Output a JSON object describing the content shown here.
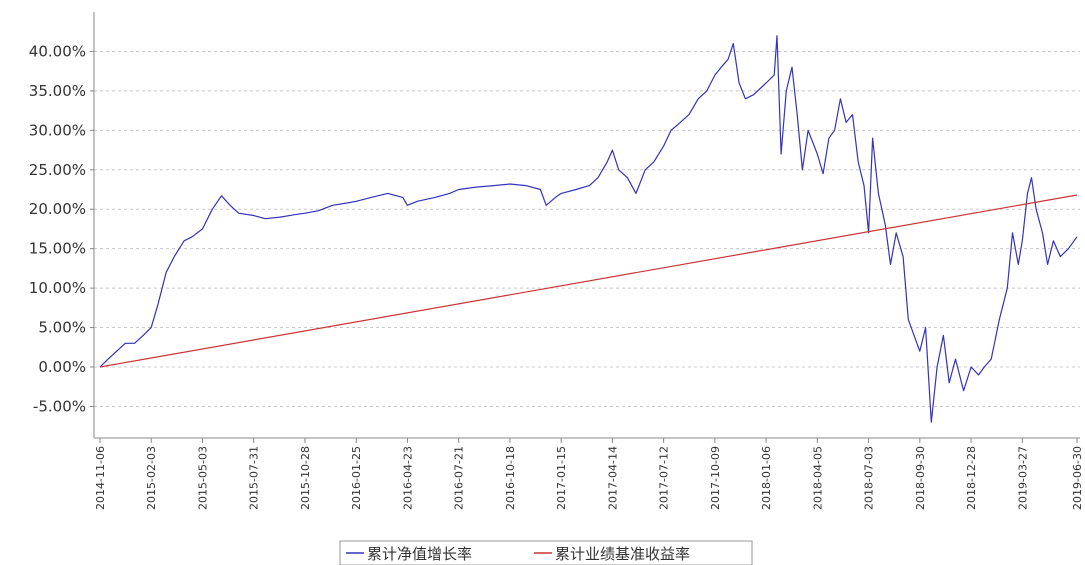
{
  "chart_data": {
    "type": "line",
    "title": "",
    "xlabel": "",
    "ylabel": "",
    "ylim": [
      -0.09,
      0.45
    ],
    "grid": true,
    "legend_position": "bottom-center",
    "x_ticks": [
      "2014-11-06",
      "2015-02-03",
      "2015-05-03",
      "2015-07-31",
      "2015-10-28",
      "2016-01-25",
      "2016-04-23",
      "2016-07-21",
      "2016-10-18",
      "2017-01-15",
      "2017-04-14",
      "2017-07-12",
      "2017-10-09",
      "2018-01-06",
      "2018-04-05",
      "2018-07-03",
      "2018-09-30",
      "2018-12-28",
      "2019-03-27",
      "2019-06-30"
    ],
    "y_ticks": [
      "-5.00%",
      "0.00%",
      "5.00%",
      "10.00%",
      "15.00%",
      "20.00%",
      "25.00%",
      "30.00%",
      "35.00%",
      "40.00%"
    ],
    "y_tick_values": [
      -0.05,
      0,
      0.05,
      0.1,
      0.15,
      0.2,
      0.25,
      0.3,
      0.35,
      0.4
    ],
    "series": [
      {
        "name": "累计净值增长率",
        "color": "#3333bb",
        "points": [
          [
            "2014-11-06",
            0.0
          ],
          [
            "2014-11-20",
            0.01
          ],
          [
            "2014-12-05",
            0.02
          ],
          [
            "2014-12-20",
            0.03
          ],
          [
            "2015-01-05",
            0.03
          ],
          [
            "2015-01-20",
            0.04
          ],
          [
            "2015-02-03",
            0.05
          ],
          [
            "2015-02-15",
            0.08
          ],
          [
            "2015-03-01",
            0.12
          ],
          [
            "2015-03-15",
            0.14
          ],
          [
            "2015-04-01",
            0.16
          ],
          [
            "2015-04-15",
            0.165
          ],
          [
            "2015-05-03",
            0.175
          ],
          [
            "2015-05-20",
            0.2
          ],
          [
            "2015-06-05",
            0.217
          ],
          [
            "2015-06-20",
            0.205
          ],
          [
            "2015-07-05",
            0.195
          ],
          [
            "2015-07-31",
            0.192
          ],
          [
            "2015-08-20",
            0.188
          ],
          [
            "2015-09-15",
            0.19
          ],
          [
            "2015-10-10",
            0.193
          ],
          [
            "2015-10-28",
            0.195
          ],
          [
            "2015-11-20",
            0.198
          ],
          [
            "2015-12-15",
            0.205
          ],
          [
            "2016-01-10",
            0.208
          ],
          [
            "2016-01-25",
            0.21
          ],
          [
            "2016-02-20",
            0.215
          ],
          [
            "2016-03-20",
            0.22
          ],
          [
            "2016-04-15",
            0.215
          ],
          [
            "2016-04-23",
            0.205
          ],
          [
            "2016-05-10",
            0.21
          ],
          [
            "2016-06-10",
            0.215
          ],
          [
            "2016-07-05",
            0.22
          ],
          [
            "2016-07-21",
            0.225
          ],
          [
            "2016-08-20",
            0.228
          ],
          [
            "2016-09-20",
            0.23
          ],
          [
            "2016-10-18",
            0.232
          ],
          [
            "2016-11-15",
            0.23
          ],
          [
            "2016-12-10",
            0.225
          ],
          [
            "2016-12-20",
            0.205
          ],
          [
            "2017-01-05",
            0.215
          ],
          [
            "2017-01-15",
            0.22
          ],
          [
            "2017-02-10",
            0.225
          ],
          [
            "2017-03-05",
            0.23
          ],
          [
            "2017-03-20",
            0.24
          ],
          [
            "2017-04-05",
            0.26
          ],
          [
            "2017-04-14",
            0.275
          ],
          [
            "2017-04-25",
            0.25
          ],
          [
            "2017-05-10",
            0.24
          ],
          [
            "2017-05-25",
            0.22
          ],
          [
            "2017-06-10",
            0.25
          ],
          [
            "2017-06-25",
            0.26
          ],
          [
            "2017-07-12",
            0.28
          ],
          [
            "2017-07-25",
            0.3
          ],
          [
            "2017-08-10",
            0.31
          ],
          [
            "2017-08-25",
            0.32
          ],
          [
            "2017-09-10",
            0.34
          ],
          [
            "2017-09-25",
            0.35
          ],
          [
            "2017-10-09",
            0.37
          ],
          [
            "2017-10-20",
            0.38
          ],
          [
            "2017-11-01",
            0.39
          ],
          [
            "2017-11-10",
            0.41
          ],
          [
            "2017-11-20",
            0.36
          ],
          [
            "2017-12-01",
            0.34
          ],
          [
            "2017-12-15",
            0.345
          ],
          [
            "2018-01-06",
            0.36
          ],
          [
            "2018-01-20",
            0.37
          ],
          [
            "2018-01-25",
            0.42
          ],
          [
            "2018-02-01",
            0.27
          ],
          [
            "2018-02-10",
            0.35
          ],
          [
            "2018-02-20",
            0.38
          ],
          [
            "2018-03-01",
            0.32
          ],
          [
            "2018-03-10",
            0.25
          ],
          [
            "2018-03-20",
            0.3
          ],
          [
            "2018-04-05",
            0.27
          ],
          [
            "2018-04-15",
            0.245
          ],
          [
            "2018-04-25",
            0.29
          ],
          [
            "2018-05-05",
            0.3
          ],
          [
            "2018-05-15",
            0.34
          ],
          [
            "2018-05-25",
            0.31
          ],
          [
            "2018-06-05",
            0.32
          ],
          [
            "2018-06-15",
            0.26
          ],
          [
            "2018-06-25",
            0.23
          ],
          [
            "2018-07-03",
            0.17
          ],
          [
            "2018-07-10",
            0.29
          ],
          [
            "2018-07-20",
            0.22
          ],
          [
            "2018-08-01",
            0.18
          ],
          [
            "2018-08-10",
            0.13
          ],
          [
            "2018-08-20",
            0.17
          ],
          [
            "2018-09-01",
            0.14
          ],
          [
            "2018-09-10",
            0.06
          ],
          [
            "2018-09-20",
            0.04
          ],
          [
            "2018-09-30",
            0.02
          ],
          [
            "2018-10-10",
            0.05
          ],
          [
            "2018-10-20",
            -0.07
          ],
          [
            "2018-10-30",
            0.0
          ],
          [
            "2018-11-10",
            0.04
          ],
          [
            "2018-11-20",
            -0.02
          ],
          [
            "2018-12-01",
            0.01
          ],
          [
            "2018-12-15",
            -0.03
          ],
          [
            "2018-12-28",
            0.0
          ],
          [
            "2019-01-10",
            -0.01
          ],
          [
            "2019-01-20",
            0.0
          ],
          [
            "2019-02-01",
            0.01
          ],
          [
            "2019-02-15",
            0.06
          ],
          [
            "2019-03-01",
            0.1
          ],
          [
            "2019-03-10",
            0.17
          ],
          [
            "2019-03-20",
            0.13
          ],
          [
            "2019-03-27",
            0.16
          ],
          [
            "2019-04-05",
            0.22
          ],
          [
            "2019-04-12",
            0.24
          ],
          [
            "2019-04-20",
            0.2
          ],
          [
            "2019-05-01",
            0.17
          ],
          [
            "2019-05-10",
            0.13
          ],
          [
            "2019-05-20",
            0.16
          ],
          [
            "2019-06-01",
            0.14
          ],
          [
            "2019-06-15",
            0.15
          ],
          [
            "2019-06-30",
            0.165
          ]
        ]
      },
      {
        "name": "累计业绩基准收益率",
        "color": "#cc3333",
        "points": [
          [
            "2014-11-06",
            0.0
          ],
          [
            "2019-06-30",
            0.218
          ]
        ]
      }
    ]
  }
}
